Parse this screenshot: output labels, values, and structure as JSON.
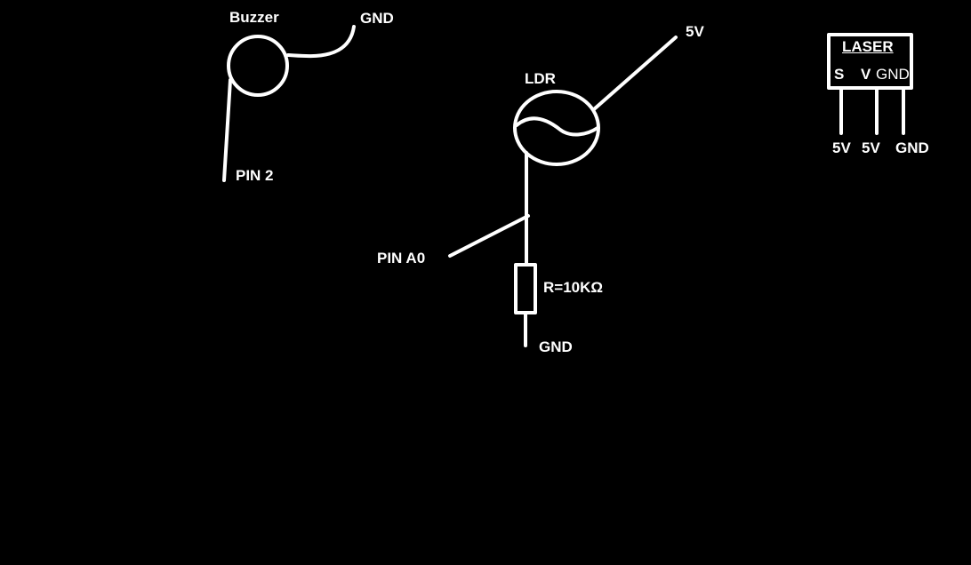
{
  "colors": {
    "background": "#000000",
    "ink": "#ffffff"
  },
  "buzzer": {
    "label": "Buzzer",
    "gnd": "GND",
    "pin": "PIN 2"
  },
  "ldr": {
    "label": "LDR",
    "supply": "5V",
    "pin": "PIN A0",
    "resistor": "R=10KΩ",
    "gnd": "GND"
  },
  "laser": {
    "label": "LASER",
    "pins": [
      "S",
      "V",
      "GND"
    ],
    "connections": [
      "5V",
      "5V",
      "GND"
    ]
  }
}
